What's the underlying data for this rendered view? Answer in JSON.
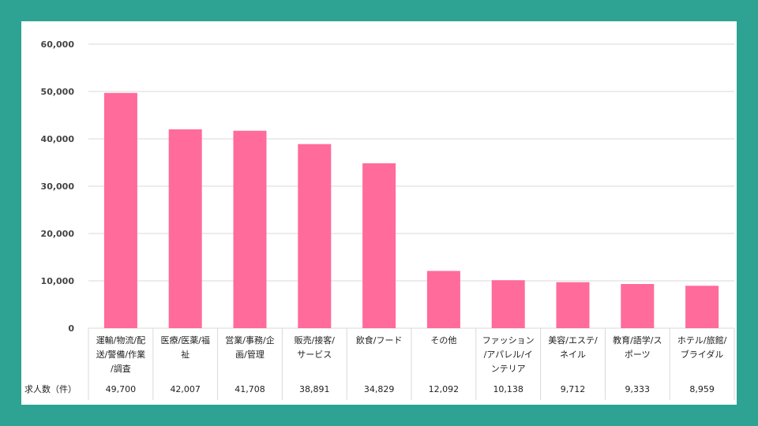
{
  "chart_data": {
    "type": "bar",
    "categories": [
      [
        "運輸/物流/配",
        "送/警備/作業",
        "/調査"
      ],
      [
        "医療/医薬/福",
        "祉"
      ],
      [
        "営業/事務/企",
        "画/管理"
      ],
      [
        "販売/接客/",
        "サービス"
      ],
      [
        "飲食/フード"
      ],
      [
        "その他"
      ],
      [
        "ファッション",
        "/アパレル/イ",
        "ンテリア"
      ],
      [
        "美容/エステ/",
        "ネイル"
      ],
      [
        "教育/語学/ス",
        "ポーツ"
      ],
      [
        "ホテル/旅館/",
        "ブライダル"
      ]
    ],
    "values": [
      49700,
      42007,
      41708,
      38891,
      34829,
      12092,
      10138,
      9712,
      9333,
      8959
    ],
    "value_labels": [
      "49,700",
      "42,007",
      "41,708",
      "38,891",
      "34,829",
      "12,092",
      "10,138",
      "9,712",
      "9,333",
      "8,959"
    ],
    "table_row_label": "求人数（件）",
    "ylim": [
      0,
      60000
    ],
    "yticks": [
      "0",
      "10,000",
      "20,000",
      "30,000",
      "40,000",
      "50,000",
      "60,000"
    ],
    "grid": true,
    "bar_color": "#ff6b9a"
  }
}
